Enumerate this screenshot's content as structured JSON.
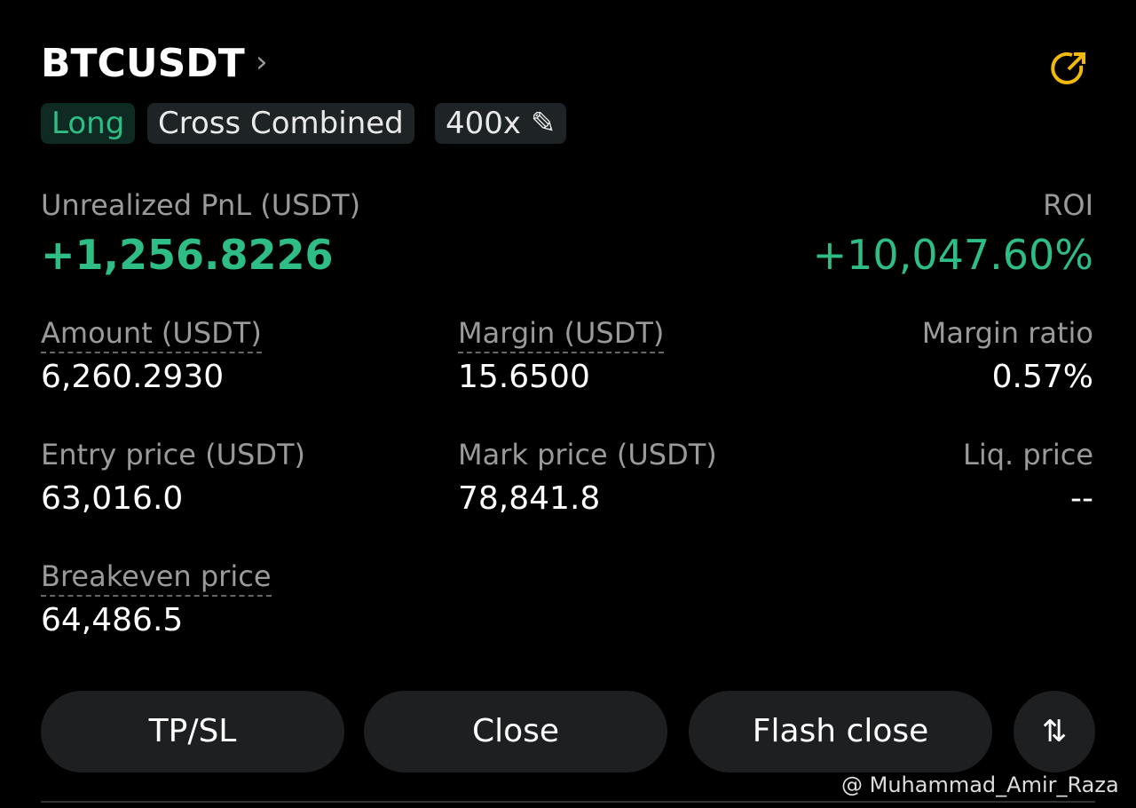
{
  "header": {
    "symbol": "BTCUSDT",
    "tags": [
      "Long",
      "Cross Combined",
      "400x"
    ]
  },
  "pnl": {
    "label": "Unrealized PnL (USDT)",
    "value": "+1,256.8226"
  },
  "roi": {
    "label": "ROI",
    "value": "+10,047.60%"
  },
  "fields": [
    {
      "label": "Amount (USDT)",
      "value": "6,260.2930"
    },
    {
      "label": "Margin (USDT)",
      "value": "15.6500"
    },
    {
      "label": "Margin ratio",
      "value": "0.57%"
    },
    {
      "label": "Entry price (USDT)",
      "value": "63,016.0"
    },
    {
      "label": "Mark price (USDT)",
      "value": "78,841.8"
    },
    {
      "label": "Liq. price",
      "value": "--"
    },
    {
      "label": "Breakeven price",
      "value": "64,486.5"
    }
  ],
  "buttons": [
    "TP/SL",
    "Close",
    "Flash close"
  ],
  "watermark": "@ Muhammad_Amir_Raza"
}
